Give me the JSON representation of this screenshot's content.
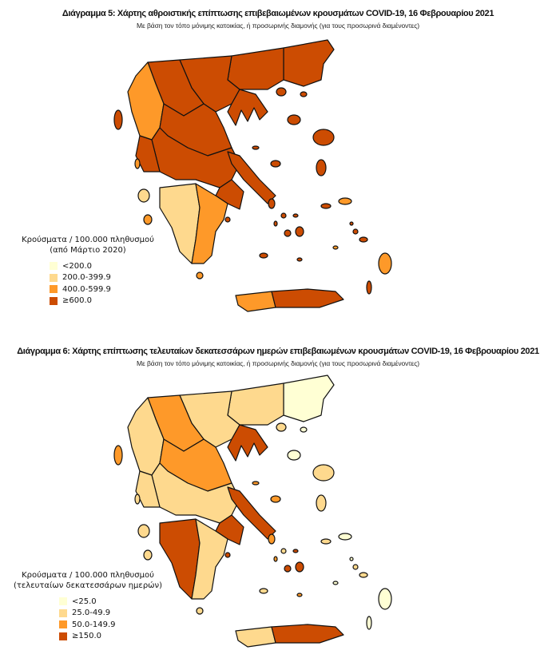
{
  "colors": [
    "#FFFFD4",
    "#FED98E",
    "#FE9929",
    "#CC4C02"
  ],
  "maps": [
    {
      "title": "Διάγραμμα 5: Χάρτης αθροιστικής επίπτωσης επιβεβαιωμένων κρουσμάτων COVID-19, 16 Φεβρουαρίου 2021",
      "subtitle": "Με βάση τον τόπο μόνιμης κατοικίας, ή προσωρινής διαμονής (για τους προσωρινά διαμένοντες)",
      "legend": {
        "title_line1": "Κρούσματα / 100.000 πληθυσμού",
        "title_line2": "(από Μάρτιο 2020)",
        "classes": [
          "<200.0",
          "200.0-399.9",
          "400.0-599.9",
          "≥600.0"
        ]
      },
      "region_classes": {
        "thrace": 3,
        "emac": 3,
        "cmac": 3,
        "chalk": 3,
        "wmac": 3,
        "epirus": 2,
        "thess": 3,
        "sterea": 3,
        "evia": 3,
        "attica": 3,
        "aitol": 3,
        "pelw": 1,
        "pele": 2,
        "cretew": 2,
        "cretee": 3
      },
      "island_classes": {
        "corfu": 3,
        "kefalonia": 1,
        "zakynthos": 2,
        "lefkada": 2,
        "thasos": 3,
        "samothraki": 3,
        "lemnos": 3,
        "lesvos": 3,
        "chios": 3,
        "samos": 2,
        "ikaria": 3,
        "rhodes": 2,
        "kos": 3,
        "karpathos": 3,
        "skyros": 3,
        "naxos": 3,
        "paros": 3,
        "andros": 3,
        "tinos": 3,
        "mykonos": 3,
        "santorini": 3,
        "milos": 3,
        "kythira": 2,
        "aegina": 3,
        "syros": 3,
        "kalymnos": 3,
        "leros": 3,
        "astypalaia": 2,
        "sporades": 3
      }
    },
    {
      "title": "Διάγραμμα 6: Χάρτης επίπτωσης τελευταίων δεκατεσσάρων ημερών επιβεβαιωμένων κρουσμάτων COVID-19, 16 Φεβρουαρίου 2021",
      "subtitle": "Με βάση τον τόπο μόνιμης κατοικίας, ή προσωρινής διαμονής (για τους προσωρινά διαμένοντες)",
      "legend": {
        "title_line1": "Κρούσματα / 100.000 πληθυσμού",
        "title_line2": "(τελευταίων δεκατεσσάρων ημερών)",
        "classes": [
          "<25.0",
          "25.0-49.9",
          "50.0-149.9",
          "≥150.0"
        ]
      },
      "region_classes": {
        "thrace": 0,
        "emac": 1,
        "cmac": 1,
        "chalk": 3,
        "wmac": 2,
        "epirus": 1,
        "thess": 2,
        "sterea": 1,
        "evia": 3,
        "attica": 3,
        "aitol": 1,
        "pelw": 3,
        "pele": 1,
        "cretew": 1,
        "cretee": 3
      },
      "island_classes": {
        "corfu": 2,
        "kefalonia": 1,
        "zakynthos": 1,
        "lefkada": 1,
        "thasos": 1,
        "samothraki": 0,
        "lemnos": 0,
        "lesvos": 1,
        "chios": 1,
        "samos": 0,
        "ikaria": 1,
        "rhodes": 0,
        "kos": 1,
        "karpathos": 0,
        "skyros": 2,
        "naxos": 3,
        "paros": 3,
        "andros": 2,
        "tinos": 1,
        "mykonos": 3,
        "santorini": 2,
        "milos": 1,
        "kythira": 1,
        "aegina": 3,
        "syros": 2,
        "kalymnos": 1,
        "leros": 0,
        "astypalaia": 0,
        "sporades": 2
      }
    }
  ]
}
